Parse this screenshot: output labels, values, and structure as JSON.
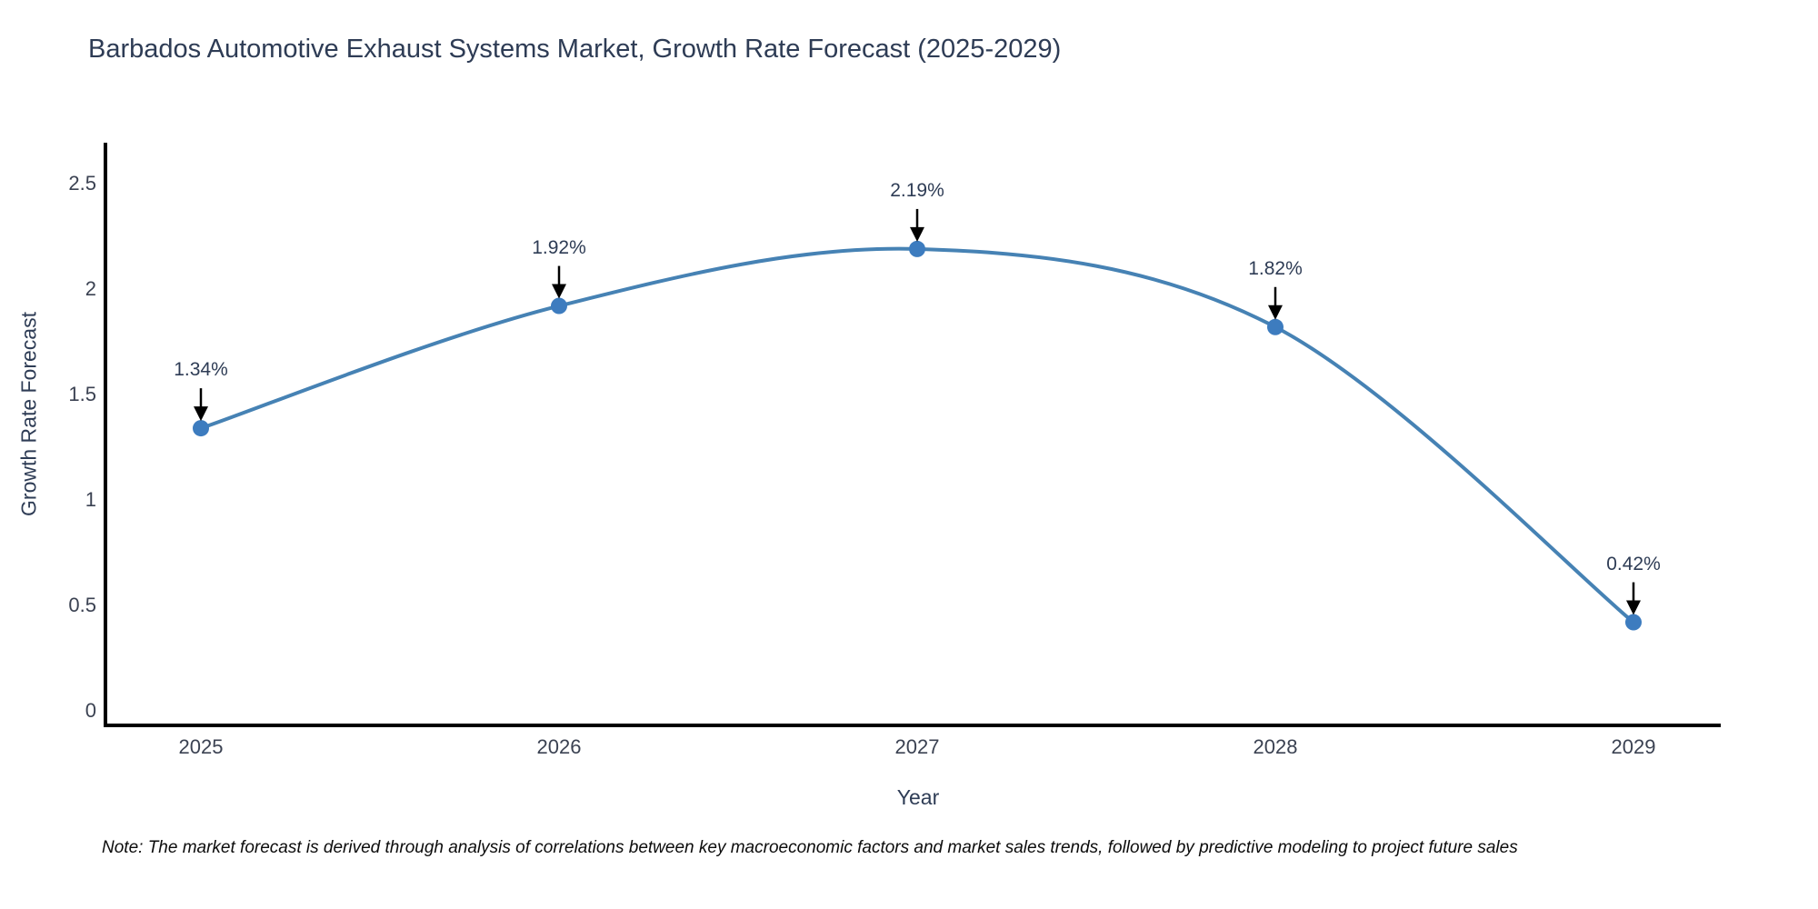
{
  "title": "Barbados Automotive Exhaust Systems Market, Growth Rate Forecast (2025-2029)",
  "note": "Note: The market forecast is derived through analysis of correlations between key macroeconomic factors and market sales trends, followed by predictive modeling to project future sales",
  "chart_data": {
    "type": "line",
    "title": "Barbados Automotive Exhaust Systems Market, Growth Rate Forecast (2025-2029)",
    "xlabel": "Year",
    "ylabel": "Growth Rate Forecast",
    "categories": [
      "2025",
      "2026",
      "2027",
      "2028",
      "2029"
    ],
    "values": [
      1.34,
      1.92,
      2.19,
      1.82,
      0.42
    ],
    "point_labels": [
      "1.34%",
      "1.92%",
      "2.19%",
      "1.82%",
      "0.42%"
    ],
    "yticks": [
      0,
      0.5,
      1,
      1.5,
      2,
      2.5
    ],
    "ylim": [
      -0.09,
      2.72
    ],
    "grid": false,
    "legend": "none",
    "line_color": "#4682b4",
    "marker_color": "#3d7cbf",
    "arrow_color": "#000000",
    "axis_color": "#000000",
    "title_color": "#2e3c55",
    "tick_color": "#3b4252"
  }
}
